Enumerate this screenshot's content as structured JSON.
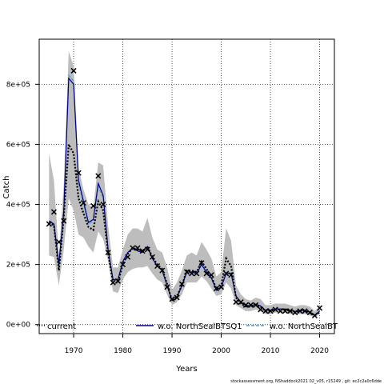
{
  "footer": "stockassessment.org, NShaddock2021 02_v05, r15249 , git: ec2c2a0c6dde",
  "chart_data": {
    "type": "line",
    "title": "",
    "xlabel": "Years",
    "ylabel": "Catch",
    "xlim": [
      1963,
      2023
    ],
    "ylim": [
      -30000,
      950000
    ],
    "x_ticks": [
      1970,
      1980,
      1990,
      2000,
      2010,
      2020
    ],
    "x_tick_labels": [
      "1970",
      "1980",
      "1990",
      "2000",
      "2010",
      "2020"
    ],
    "y_ticks": [
      0,
      200000,
      400000,
      600000,
      800000
    ],
    "y_tick_labels": [
      "0e+00",
      "2e+05",
      "4e+05",
      "6e+05",
      "8e+05"
    ],
    "grid": true,
    "legend_position": "bottom",
    "colors": {
      "band": "#bdbdbd",
      "current": "#000000",
      "tsq1": "#00008b",
      "bt": "#4a9fd8",
      "observed": "#000000"
    },
    "legend": [
      {
        "label": "current",
        "style": "dotted",
        "color": "#000000"
      },
      {
        "label": "w.o. NorthSealBTSQ1",
        "style": "solid",
        "color": "#00008b"
      },
      {
        "label": "w.o. NorthSealBT",
        "style": "dashed",
        "color": "#4a9fd8"
      }
    ],
    "x": [
      1965,
      1966,
      1967,
      1968,
      1969,
      1970,
      1971,
      1972,
      1973,
      1974,
      1975,
      1976,
      1977,
      1978,
      1979,
      1980,
      1981,
      1982,
      1983,
      1984,
      1985,
      1986,
      1987,
      1988,
      1989,
      1990,
      1991,
      1992,
      1993,
      1994,
      1995,
      1996,
      1997,
      1998,
      1999,
      2000,
      2001,
      2002,
      2003,
      2004,
      2005,
      2006,
      2007,
      2008,
      2009,
      2010,
      2011,
      2012,
      2013,
      2014,
      2015,
      2016,
      2017,
      2018,
      2019,
      2020
    ],
    "band_upper": [
      570000,
      480000,
      230000,
      470000,
      910000,
      860000,
      520000,
      450000,
      400000,
      390000,
      540000,
      530000,
      330000,
      190000,
      190000,
      250000,
      300000,
      320000,
      320000,
      310000,
      355000,
      290000,
      250000,
      240000,
      190000,
      115000,
      140000,
      180000,
      230000,
      240000,
      230000,
      275000,
      250000,
      220000,
      160000,
      175000,
      320000,
      280000,
      130000,
      100000,
      85000,
      80000,
      90000,
      85000,
      65000,
      65000,
      70000,
      70000,
      70000,
      65000,
      60000,
      65000,
      65000,
      60000,
      45000,
      60000
    ],
    "band_lower": [
      230000,
      225000,
      130000,
      250000,
      420000,
      380000,
      300000,
      290000,
      260000,
      240000,
      310000,
      285000,
      210000,
      110000,
      105000,
      150000,
      175000,
      185000,
      190000,
      190000,
      195000,
      170000,
      150000,
      140000,
      100000,
      65000,
      75000,
      100000,
      140000,
      140000,
      140000,
      160000,
      145000,
      120000,
      95000,
      100000,
      140000,
      120000,
      65000,
      55000,
      45000,
      45000,
      50000,
      45000,
      35000,
      35000,
      40000,
      40000,
      40000,
      35000,
      35000,
      35000,
      35000,
      30000,
      25000,
      35000
    ],
    "series": [
      {
        "name": "current",
        "values": [
          340000,
          330000,
          180000,
          360000,
          600000,
          570000,
          420000,
          370000,
          325000,
          315000,
          410000,
          380000,
          240000,
          140000,
          140000,
          200000,
          235000,
          255000,
          250000,
          245000,
          260000,
          225000,
          200000,
          185000,
          135000,
          80000,
          95000,
          130000,
          180000,
          180000,
          175000,
          210000,
          185000,
          160000,
          120000,
          130000,
          220000,
          195000,
          90000,
          70000,
          60000,
          60000,
          65000,
          60000,
          45000,
          45000,
          50000,
          50000,
          50000,
          45000,
          42000,
          45000,
          45000,
          40000,
          30000,
          42000
        ]
      },
      {
        "name": "w.o. NorthSealBTSQ1",
        "values": [
          345000,
          335000,
          200000,
          380000,
          820000,
          800000,
          480000,
          410000,
          340000,
          350000,
          470000,
          430000,
          250000,
          150000,
          150000,
          210000,
          240000,
          255000,
          245000,
          240000,
          260000,
          220000,
          195000,
          180000,
          130000,
          80000,
          90000,
          130000,
          175000,
          175000,
          170000,
          200000,
          175000,
          155000,
          115000,
          125000,
          170000,
          170000,
          95000,
          75000,
          65000,
          62000,
          68000,
          62000,
          48000,
          48000,
          52000,
          52000,
          52000,
          47000,
          44000,
          47000,
          47000,
          42000,
          32000,
          45000
        ]
      },
      {
        "name": "w.o. NorthSealBT",
        "values": [
          340000,
          330000,
          190000,
          370000,
          830000,
          810000,
          470000,
          400000,
          335000,
          345000,
          460000,
          420000,
          245000,
          145000,
          145000,
          205000,
          235000,
          255000,
          245000,
          240000,
          258000,
          220000,
          195000,
          180000,
          130000,
          80000,
          90000,
          128000,
          172000,
          172000,
          168000,
          198000,
          172000,
          152000,
          112000,
          122000,
          175000,
          172000,
          92000,
          72000,
          62000,
          60000,
          66000,
          60000,
          46000,
          46000,
          50000,
          50000,
          50000,
          45000,
          42000,
          45000,
          45000,
          40000,
          30000,
          43000
        ]
      }
    ],
    "observed": [
      {
        "x": 1965,
        "y": 335000
      },
      {
        "x": 1966,
        "y": 375000
      },
      {
        "x": 1967,
        "y": 275000
      },
      {
        "x": 1968,
        "y": 345000
      },
      {
        "x": 1970,
        "y": 845000
      },
      {
        "x": 1971,
        "y": 505000
      },
      {
        "x": 1972,
        "y": 405000
      },
      {
        "x": 1974,
        "y": 395000
      },
      {
        "x": 1975,
        "y": 495000
      },
      {
        "x": 1976,
        "y": 400000
      },
      {
        "x": 1977,
        "y": 240000
      },
      {
        "x": 1978,
        "y": 140000
      },
      {
        "x": 1979,
        "y": 145000
      },
      {
        "x": 1980,
        "y": 200000
      },
      {
        "x": 1981,
        "y": 225000
      },
      {
        "x": 1982,
        "y": 255000
      },
      {
        "x": 1983,
        "y": 255000
      },
      {
        "x": 1984,
        "y": 245000
      },
      {
        "x": 1985,
        "y": 250000
      },
      {
        "x": 1986,
        "y": 225000
      },
      {
        "x": 1987,
        "y": 195000
      },
      {
        "x": 1988,
        "y": 180000
      },
      {
        "x": 1989,
        "y": 125000
      },
      {
        "x": 1990,
        "y": 85000
      },
      {
        "x": 1991,
        "y": 90000
      },
      {
        "x": 1992,
        "y": 135000
      },
      {
        "x": 1993,
        "y": 175000
      },
      {
        "x": 1994,
        "y": 170000
      },
      {
        "x": 1995,
        "y": 170000
      },
      {
        "x": 1996,
        "y": 205000
      },
      {
        "x": 1997,
        "y": 170000
      },
      {
        "x": 1998,
        "y": 165000
      },
      {
        "x": 1999,
        "y": 120000
      },
      {
        "x": 2000,
        "y": 125000
      },
      {
        "x": 2001,
        "y": 170000
      },
      {
        "x": 2002,
        "y": 165000
      },
      {
        "x": 2003,
        "y": 75000
      },
      {
        "x": 2004,
        "y": 75000
      },
      {
        "x": 2005,
        "y": 65000
      },
      {
        "x": 2006,
        "y": 65000
      },
      {
        "x": 2007,
        "y": 65000
      },
      {
        "x": 2008,
        "y": 50000
      },
      {
        "x": 2009,
        "y": 45000
      },
      {
        "x": 2010,
        "y": 45000
      },
      {
        "x": 2011,
        "y": 50000
      },
      {
        "x": 2012,
        "y": 45000
      },
      {
        "x": 2013,
        "y": 45000
      },
      {
        "x": 2014,
        "y": 45000
      },
      {
        "x": 2015,
        "y": 40000
      },
      {
        "x": 2016,
        "y": 45000
      },
      {
        "x": 2017,
        "y": 45000
      },
      {
        "x": 2018,
        "y": 40000
      },
      {
        "x": 2019,
        "y": 30000
      },
      {
        "x": 2020,
        "y": 55000
      }
    ]
  }
}
